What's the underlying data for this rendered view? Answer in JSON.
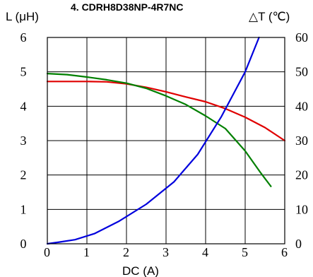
{
  "chart_data": {
    "type": "line",
    "title": "4. CDRH8D38NP-4R7NC",
    "xlabel": "DC (A)",
    "ylabel_left": "L (μH)",
    "ylabel_right": "△T (℃)",
    "xlim": [
      0,
      6
    ],
    "ylim_left": [
      0,
      6
    ],
    "ylim_right": [
      0,
      60
    ],
    "x_ticks": [
      "0",
      "1",
      "2",
      "3",
      "4",
      "5",
      "6"
    ],
    "y_left_ticks": [
      "0",
      "1",
      "2",
      "3",
      "4",
      "5",
      "6"
    ],
    "y_right_ticks": [
      "0",
      "10",
      "20",
      "30",
      "40",
      "50",
      "60"
    ],
    "grid": true,
    "series": [
      {
        "color": "#e00000",
        "axis": "left",
        "x": [
          0.0,
          0.5,
          1.0,
          1.5,
          2.0,
          2.5,
          3.0,
          3.5,
          4.0,
          4.5,
          5.0,
          5.5,
          6.0
        ],
        "y": [
          4.72,
          4.72,
          4.72,
          4.71,
          4.65,
          4.55,
          4.42,
          4.27,
          4.13,
          3.93,
          3.68,
          3.38,
          3.0
        ]
      },
      {
        "color": "#008000",
        "axis": "left",
        "x": [
          0.0,
          0.5,
          1.0,
          1.5,
          2.0,
          2.5,
          3.0,
          3.5,
          4.0,
          4.5,
          5.0,
          5.4,
          5.65
        ],
        "y": [
          4.95,
          4.92,
          4.85,
          4.77,
          4.67,
          4.52,
          4.3,
          4.05,
          3.72,
          3.35,
          2.7,
          2.05,
          1.67
        ]
      },
      {
        "color": "#0000dd",
        "axis": "right",
        "x": [
          0.0,
          0.3,
          0.7,
          1.2,
          1.8,
          2.5,
          3.2,
          3.8,
          4.4,
          5.0,
          5.35
        ],
        "y": [
          0,
          0.5,
          1.2,
          3.0,
          6.5,
          11.5,
          18.0,
          26.0,
          37.0,
          50.0,
          60.0
        ]
      }
    ]
  }
}
